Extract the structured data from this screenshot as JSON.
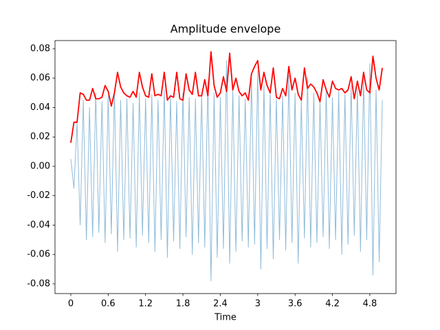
{
  "chart_data": {
    "type": "line",
    "title": "Amplitude envelope",
    "xlabel": "Time",
    "x": [
      0,
      0.05,
      0.1,
      0.15,
      0.2,
      0.25,
      0.3,
      0.35,
      0.4,
      0.45,
      0.5,
      0.55,
      0.6,
      0.65,
      0.7,
      0.75,
      0.8,
      0.85,
      0.9,
      0.95,
      1,
      1.05,
      1.1,
      1.15,
      1.2,
      1.25,
      1.3,
      1.35,
      1.4,
      1.45,
      1.5,
      1.55,
      1.6,
      1.65,
      1.7,
      1.75,
      1.8,
      1.85,
      1.9,
      1.95,
      2,
      2.05,
      2.1,
      2.15,
      2.2,
      2.25,
      2.3,
      2.35,
      2.4,
      2.45,
      2.5,
      2.55,
      2.6,
      2.65,
      2.7,
      2.75,
      2.8,
      2.85,
      2.9,
      2.95,
      3,
      3.05,
      3.1,
      3.15,
      3.2,
      3.25,
      3.3,
      3.35,
      3.4,
      3.45,
      3.5,
      3.55,
      3.6,
      3.65,
      3.7,
      3.75,
      3.8,
      3.85,
      3.9,
      3.95,
      4,
      4.05,
      4.1,
      4.15,
      4.2,
      4.25,
      4.3,
      4.35,
      4.4,
      4.45,
      4.5,
      4.55,
      4.6,
      4.65,
      4.7,
      4.75,
      4.8,
      4.85,
      4.9,
      4.95,
      5
    ],
    "series": [
      {
        "color": "#1f77b4",
        "opacity": 0.5,
        "width": 1,
        "values": [
          0.005,
          -0.015,
          0.03,
          -0.04,
          0.045,
          -0.05,
          0.04,
          -0.048,
          0.05,
          -0.045,
          0.044,
          -0.052,
          0.048,
          -0.046,
          0.052,
          -0.058,
          0.045,
          -0.05,
          0.046,
          -0.049,
          0.043,
          -0.055,
          0.05,
          -0.047,
          0.046,
          -0.052,
          0.049,
          -0.058,
          0.045,
          -0.05,
          0.052,
          -0.062,
          0.048,
          -0.051,
          0.044,
          -0.056,
          0.05,
          -0.048,
          0.047,
          -0.06,
          0.046,
          -0.052,
          0.049,
          -0.055,
          0.058,
          -0.078,
          0.05,
          -0.062,
          0.047,
          -0.056,
          0.072,
          -0.066,
          0.052,
          -0.058,
          0.048,
          -0.051,
          0.046,
          -0.055,
          0.06,
          -0.053,
          0.065,
          -0.07,
          0.055,
          -0.056,
          0.05,
          -0.063,
          0.046,
          -0.05,
          0.048,
          -0.057,
          0.062,
          -0.052,
          0.05,
          -0.066,
          0.045,
          -0.049,
          0.06,
          -0.055,
          0.05,
          -0.052,
          0.044,
          -0.048,
          0.052,
          -0.056,
          0.047,
          -0.05,
          0.051,
          -0.06,
          0.049,
          -0.053,
          0.055,
          -0.047,
          0.052,
          -0.058,
          0.06,
          -0.05,
          0.07,
          -0.074,
          0.052,
          -0.065,
          0.045
        ]
      },
      {
        "color": "#ff0000",
        "opacity": 1,
        "width": 1.8,
        "values": [
          0.016,
          0.03,
          0.03,
          0.05,
          0.049,
          0.045,
          0.045,
          0.053,
          0.046,
          0.046,
          0.047,
          0.055,
          0.051,
          0.041,
          0.05,
          0.064,
          0.054,
          0.05,
          0.048,
          0.047,
          0.051,
          0.047,
          0.064,
          0.054,
          0.048,
          0.047,
          0.063,
          0.048,
          0.049,
          0.048,
          0.064,
          0.045,
          0.048,
          0.047,
          0.064,
          0.046,
          0.045,
          0.063,
          0.052,
          0.049,
          0.064,
          0.048,
          0.048,
          0.059,
          0.048,
          0.078,
          0.055,
          0.047,
          0.05,
          0.061,
          0.051,
          0.077,
          0.052,
          0.06,
          0.051,
          0.048,
          0.05,
          0.045,
          0.063,
          0.068,
          0.072,
          0.052,
          0.064,
          0.055,
          0.05,
          0.067,
          0.047,
          0.046,
          0.053,
          0.048,
          0.068,
          0.052,
          0.06,
          0.049,
          0.045,
          0.067,
          0.053,
          0.056,
          0.054,
          0.05,
          0.044,
          0.059,
          0.052,
          0.047,
          0.058,
          0.053,
          0.052,
          0.053,
          0.05,
          0.052,
          0.061,
          0.046,
          0.058,
          0.048,
          0.064,
          0.052,
          0.05,
          0.075,
          0.06,
          0.052,
          0.067
        ]
      }
    ],
    "xlim": [
      -0.254,
      5.22
    ],
    "xticks": [
      0,
      0.6,
      1.2,
      1.8,
      2.4,
      3,
      3.6,
      4.2,
      4.8
    ],
    "ylim": [
      -0.0866,
      0.0856
    ],
    "yticks": [
      -0.08,
      -0.06,
      -0.04,
      -0.02,
      {
        "value": 0,
        "label": "0.00"
      },
      0.02,
      0.04,
      0.06,
      0.08
    ],
    "grid": false
  }
}
